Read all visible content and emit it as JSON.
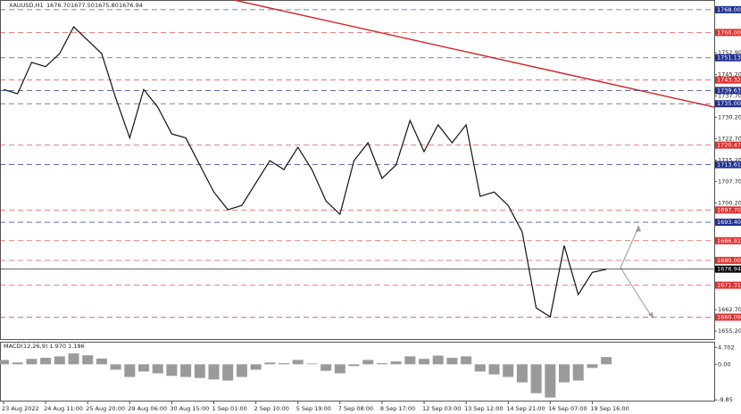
{
  "chart_data": {
    "type": "line",
    "title": "XAUUSD,H1",
    "quote": [
      "1676.70",
      "1677.50",
      "1675.80",
      "1676.94"
    ],
    "categories": [
      "23 Aug 2022",
      null,
      null,
      "24 Aug 11:00",
      null,
      null,
      "25 Aug 20:00",
      null,
      null,
      "29 Aug 06:00",
      null,
      null,
      "30 Aug 15:00",
      null,
      null,
      "1 Sep 01:00",
      null,
      null,
      "2 Sep 10:00",
      null,
      null,
      "5 Sep 19:00",
      null,
      null,
      "7 Sep 08:00",
      null,
      null,
      "8 Sep 17:00",
      null,
      null,
      "12 Sep 03:00",
      null,
      null,
      "13 Sep 12:00",
      null,
      null,
      "14 Sep 21:00",
      null,
      null,
      "16 Sep 07:00",
      null,
      null,
      "19 Sep 16:00",
      null
    ],
    "values": [
      1740,
      1738.5,
      1749.5,
      1748,
      1752.6,
      1762,
      1757.3,
      1752.6,
      1737,
      1723,
      1740,
      1733.8,
      1724.4,
      1723,
      1713.5,
      1704,
      1697.8,
      1699.3,
      1707.2,
      1715,
      1711.9,
      1719.7,
      1711.9,
      1700.9,
      1696.2,
      1715,
      1721.3,
      1708.8,
      1713.5,
      1729.1,
      1718.2,
      1727.6,
      1721.3,
      1727.6,
      1702.5,
      1704,
      1699.3,
      1690,
      1663.3,
      1660.2,
      1685.2,
      1668,
      1675.8,
      1676.9
    ],
    "color": "#111111",
    "ylim": [
      1652.4,
      1771.4
    ],
    "yticks": [
      {
        "value": 1752.9,
        "label": "1752.90"
      },
      {
        "value": 1745.2,
        "label": "1745.20"
      },
      {
        "value": 1737.7,
        "label": "1737.70"
      },
      {
        "value": 1730.2,
        "label": "1730.20"
      },
      {
        "value": 1722.7,
        "label": "1722.70"
      },
      {
        "value": 1715.2,
        "label": "1715.20"
      },
      {
        "value": 1707.7,
        "label": "1707.70"
      },
      {
        "value": 1700.2,
        "label": "1700.20"
      },
      {
        "value": 1662.7,
        "label": "1662.70"
      },
      {
        "value": 1655.2,
        "label": "1655.20"
      }
    ],
    "levels": [
      {
        "value": 1768,
        "label": "1768.00",
        "color": "#1f2f8f"
      },
      {
        "value": 1760,
        "label": "1760.00",
        "color": "#e03030"
      },
      {
        "value": 1751.13,
        "label": "1751.13",
        "color": "#1f2f8f"
      },
      {
        "value": 1743.32,
        "label": "1743.32",
        "color": "#e03030"
      },
      {
        "value": 1739.63,
        "label": "1739.63",
        "color": "#1f2f8f"
      },
      {
        "value": 1735,
        "label": "1735.00",
        "color": "#1f2f8f"
      },
      {
        "value": 1720.47,
        "label": "1720.47",
        "color": "#e03030"
      },
      {
        "value": 1713.61,
        "label": "1713.61",
        "color": "#1f2f8f"
      },
      {
        "value": 1697.7,
        "label": "1697.70",
        "color": "#e03030"
      },
      {
        "value": 1693.4,
        "label": "1693.40",
        "color": "#1f2f8f"
      },
      {
        "value": 1686.92,
        "label": "1686.92",
        "color": "#e03030"
      },
      {
        "value": 1680,
        "label": "1680.00",
        "color": "#e03030"
      },
      {
        "value": 1676.94,
        "label": "1676.94",
        "color": "#000000"
      },
      {
        "value": 1671.31,
        "label": "1671.31",
        "color": "#e03030"
      },
      {
        "value": 1660.09,
        "label": "1660.09",
        "color": "#e03030"
      }
    ],
    "macd": {
      "title": "MACD(12,26,9) 1.970 1.186",
      "ylim": [
        -10.3,
        6
      ],
      "yticks": [
        4.702,
        {
          "value": 0,
          "label": "0.00"
        },
        -9.85
      ],
      "values": [
        1.2,
        0.5,
        1.5,
        1.8,
        2.2,
        3,
        2.5,
        1.6,
        -1.5,
        -3.5,
        -2,
        -2.5,
        -3.2,
        -3.5,
        -3.8,
        -4.2,
        -4.5,
        -3.5,
        -1.5,
        0.5,
        0.3,
        1.2,
        0.2,
        -1.8,
        -2.5,
        -0.5,
        1.2,
        0.3,
        0.8,
        2.2,
        1.5,
        2.4,
        1.8,
        2.2,
        -2,
        -2.8,
        -3.5,
        -5,
        -8,
        -9.2,
        -5,
        -4.5,
        -1,
        2
      ]
    }
  }
}
